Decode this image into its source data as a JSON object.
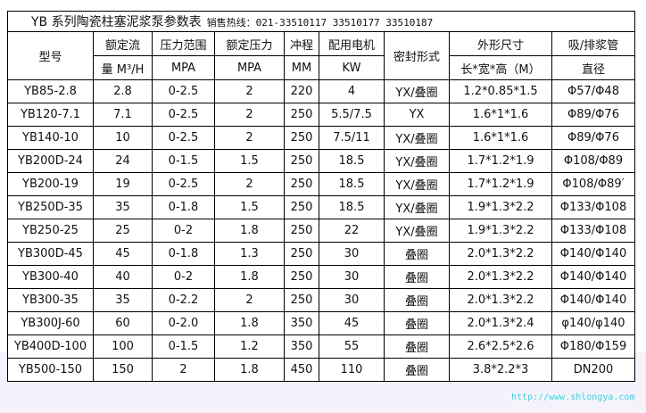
{
  "title": "YB 系列陶瓷柱塞泥浆泵参数表",
  "hotline": "销售热线：021-33510117 33510177 33510187",
  "headers": {
    "model": "型号",
    "flow_1": "额定流",
    "flow_2": "量 M³/H",
    "range_1": "压力范围",
    "range_2": "MPA",
    "pressure_1": "额定压力",
    "pressure_2": "MPA",
    "stroke_1": "冲程",
    "stroke_2": "MM",
    "motor_1": "配用电机",
    "motor_2": "KW",
    "seal": "密封形式",
    "dims_1": "外形尺寸",
    "dims_2": "长*宽*高（M）",
    "pipe_1": "吸/排浆管",
    "pipe_2": "直径"
  },
  "rows": [
    [
      "YB85-2.8",
      "2.8",
      "0-2.5",
      "2",
      "220",
      "4",
      "YX/叠圈",
      "1.2*0.85*1.5",
      "Φ57/Φ48"
    ],
    [
      "YB120-7.1",
      "7.1",
      "0-2.5",
      "2",
      "250",
      "5.5/7.5",
      "YX",
      "1.6*1*1.6",
      "Φ89/Φ76"
    ],
    [
      "YB140-10",
      "10",
      "0-2.5",
      "2",
      "250",
      "7.5/11",
      "YX/叠圈",
      "1.6*1*1.6",
      "Φ89/Φ76"
    ],
    [
      "YB200D-24",
      "24",
      "0-1.5",
      "1.5",
      "250",
      "18.5",
      "YX/叠圈",
      "1.7*1.2*1.9",
      "Φ108/Φ89"
    ],
    [
      "YB200-19",
      "19",
      "0-2.5",
      "2",
      "250",
      "18.5",
      "YX/叠圈",
      "1.7*1.2*1.9",
      "Φ108/Φ89′"
    ],
    [
      "YB250D-35",
      "35",
      "0-1.8",
      "1.5",
      "250",
      "18.5",
      "YX/叠圈",
      "1.9*1.3*2.2",
      "Φ133/Φ108"
    ],
    [
      "YB250-25",
      "25",
      "0-2",
      "1.8",
      "250",
      "22",
      "YX/叠圈",
      "1.9*1.3*2.2",
      "Φ133/Φ108"
    ],
    [
      "YB300D-45",
      "45",
      "0-1.8",
      "1.3",
      "250",
      "30",
      "叠圈",
      "2.0*1.3*2.2",
      "Φ140/Φ140"
    ],
    [
      "YB300-40",
      "40",
      "0-2",
      "1.8",
      "250",
      "30",
      "叠圈",
      "2.0*1.3*2.2",
      "Φ140/Φ140"
    ],
    [
      "YB300-35",
      "35",
      "0-2.2",
      "2",
      "250",
      "30",
      "叠圈",
      "2.0*1.3*2.2",
      "Φ140/Φ140"
    ],
    [
      "YB300J-60",
      "60",
      "0-2.0",
      "1.8",
      "350",
      "45",
      "叠圈",
      "2.0*1.3*2.4",
      "φ140/φ140"
    ],
    [
      "YB400D-100",
      "100",
      "0-1.5",
      "1.2",
      "350",
      "55",
      "叠圈",
      "2.6*2.5*2.6",
      "Φ180/Φ159"
    ],
    [
      "YB500-150",
      "150",
      "2",
      "1.8",
      "450",
      "110",
      "叠圈",
      "3.8*2.2*3",
      "DN200"
    ]
  ],
  "watermark": "http://www.shlongya.com",
  "colors": {
    "watermark": "#2ad8e6",
    "background_band": "#f6f2fb"
  }
}
